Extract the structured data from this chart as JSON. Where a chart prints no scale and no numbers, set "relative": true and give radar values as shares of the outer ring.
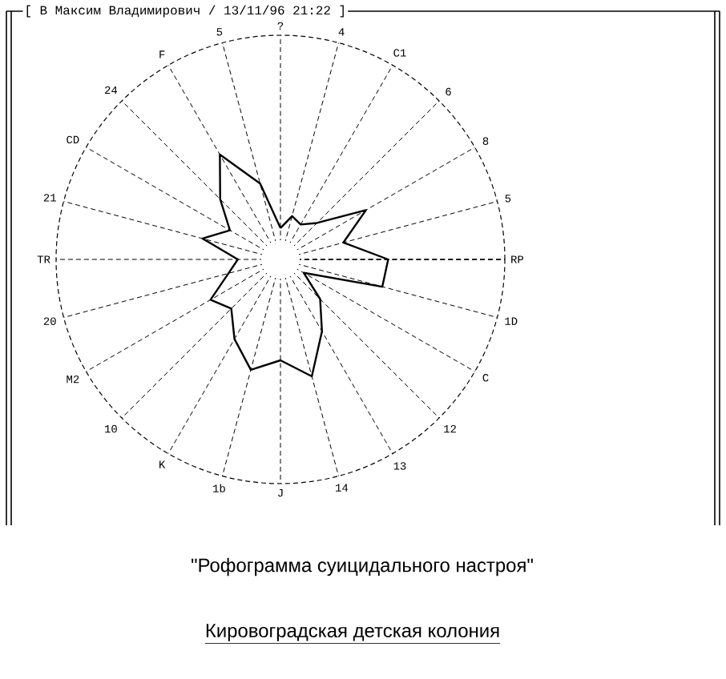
{
  "chart_data": {
    "type": "radar",
    "relative": true,
    "title": "\"Рофограмма суицидального настроя\"",
    "subtitle": "Кировоградская детская колония",
    "annotations": [
      "[ В      Максим Владимирович    / 13/11/96 21:22 ]"
    ],
    "categories": [
      "?",
      "4",
      "C1",
      "6",
      "8",
      "5",
      "RP",
      "1D",
      "C",
      "12",
      "13",
      "14",
      "J",
      "1b",
      "K",
      "10",
      "M2",
      "20",
      "TR",
      "21",
      "CD",
      "24",
      "F",
      "5"
    ],
    "series": [
      {
        "color": "#000000",
        "values": [
          0.14,
          0.2,
          0.18,
          0.23,
          0.44,
          0.29,
          0.48,
          0.47,
          0.12,
          0.25,
          0.37,
          0.54,
          0.45,
          0.51,
          0.41,
          0.31,
          0.36,
          0.24,
          0.19,
          0.36,
          0.26,
          0.38,
          0.54,
          0.35
        ]
      }
    ]
  }
}
